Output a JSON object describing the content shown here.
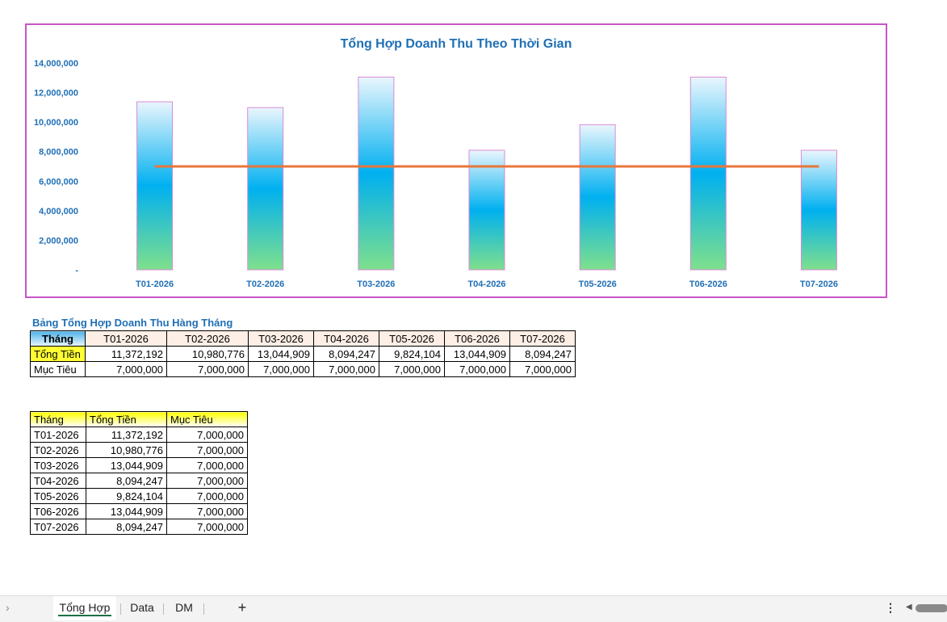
{
  "chart_data": {
    "type": "bar",
    "title": "Tổng Hợp Doanh Thu Theo Thời Gian",
    "categories": [
      "T01-2026",
      "T02-2026",
      "T03-2026",
      "T04-2026",
      "T05-2026",
      "T06-2026",
      "T07-2026"
    ],
    "series": [
      {
        "values": [
          11372192,
          10980776,
          13044909,
          8094247,
          9824104,
          13044909,
          8094247
        ]
      },
      {
        "type": "line",
        "values": [
          7000000,
          7000000,
          7000000,
          7000000,
          7000000,
          7000000,
          7000000
        ]
      }
    ],
    "y_ticks": [
      "-",
      "2,000,000",
      "4,000,000",
      "6,000,000",
      "8,000,000",
      "10,000,000",
      "12,000,000",
      "14,000,000"
    ],
    "ylim": [
      0,
      14000000
    ],
    "grid": false,
    "legend": "none",
    "colors": {
      "bar_top": "#eaf6fd",
      "bar_mid": "#00b0f0",
      "bar_bottom": "#7fe08c",
      "bar_border": "#d98ad9",
      "line": "#e8763a",
      "frame": "#c955c9",
      "text": "#1f6fb5"
    }
  },
  "section_title": "Bảng Tổng Hợp Doanh Thu Hàng Tháng",
  "summary_table": {
    "header_label": "Tháng",
    "months": [
      "T01-2026",
      "T02-2026",
      "T03-2026",
      "T04-2026",
      "T05-2026",
      "T06-2026",
      "T07-2026"
    ],
    "rows": [
      {
        "label": "Tổng Tiền",
        "values": [
          "11,372,192",
          "10,980,776",
          "13,044,909",
          "8,094,247",
          "9,824,104",
          "13,044,909",
          "8,094,247"
        ]
      },
      {
        "label": "Mục Tiêu",
        "values": [
          "7,000,000",
          "7,000,000",
          "7,000,000",
          "7,000,000",
          "7,000,000",
          "7,000,000",
          "7,000,000"
        ]
      }
    ]
  },
  "detail_table": {
    "headers": [
      "Tháng",
      "Tổng Tiền",
      "Mục Tiêu"
    ],
    "rows": [
      [
        "T01-2026",
        "11,372,192",
        "7,000,000"
      ],
      [
        "T02-2026",
        "10,980,776",
        "7,000,000"
      ],
      [
        "T03-2026",
        "13,044,909",
        "7,000,000"
      ],
      [
        "T04-2026",
        "8,094,247",
        "7,000,000"
      ],
      [
        "T05-2026",
        "9,824,104",
        "7,000,000"
      ],
      [
        "T06-2026",
        "13,044,909",
        "7,000,000"
      ],
      [
        "T07-2026",
        "8,094,247",
        "7,000,000"
      ]
    ]
  },
  "sheet_tabs": {
    "items": [
      "Tổng Hợp",
      "Data",
      "DM"
    ],
    "active": "Tổng Hợp",
    "nav_icon": "chevron-right-icon",
    "add_icon": "plus-icon",
    "more_icon": "more-vertical-icon",
    "add_glyph": "+",
    "more_glyph": "⋮",
    "nav_glyph": "›",
    "scroll_glyph": "◀"
  }
}
